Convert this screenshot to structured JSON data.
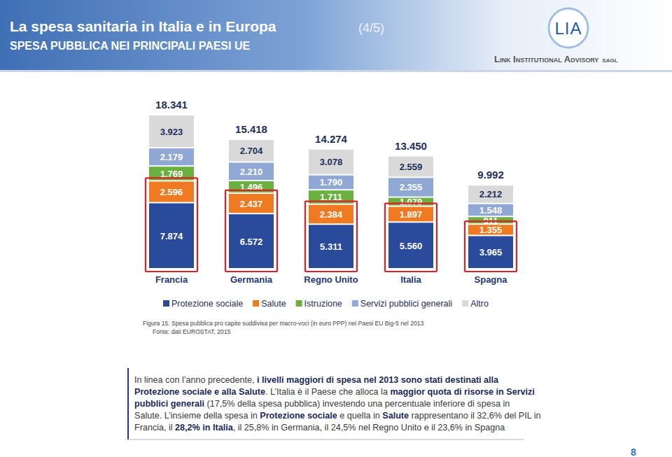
{
  "header": {
    "title": "La spesa sanitaria in Italia e in Europa",
    "page_of": "(4/5)",
    "subtitle": "SPESA PUBBLICA NEI PRINCIPALI PAESI UE"
  },
  "logo": {
    "mark": "LIA",
    "name": "Link Institutional Advisory",
    "suffix": "sagl"
  },
  "chart_data": {
    "type": "bar",
    "stacked": true,
    "data_labels": true,
    "tick_labels": "x",
    "legend": "bottom",
    "categories": [
      "Francia",
      "Germania",
      "Regno Unito",
      "Italia",
      "Spagna"
    ],
    "series": [
      {
        "name": "Protezione sociale",
        "color": "#2a4a9b",
        "values": [
          7874,
          6572,
          5311,
          5560,
          3965
        ],
        "value_labels": [
          "7.874",
          "6.572",
          "5.311",
          "5.560",
          "3.965"
        ]
      },
      {
        "name": "Salute",
        "color": "#f07a21",
        "values": [
          2596,
          2437,
          2384,
          1897,
          1355
        ],
        "value_labels": [
          "2.596",
          "2.437",
          "2.384",
          "1.897",
          "1.355"
        ]
      },
      {
        "name": "Istruzione",
        "color": "#6ab03f",
        "values": [
          1769,
          1496,
          1711,
          1079,
          911
        ],
        "value_labels": [
          "1.769",
          "1.496",
          "1.711",
          "1.079",
          "911"
        ]
      },
      {
        "name": "Servizi pubblici generali",
        "color": "#8fa8d4",
        "values": [
          2179,
          2210,
          1790,
          2355,
          1548
        ],
        "value_labels": [
          "2.179",
          "2.210",
          "1.790",
          "2.355",
          "1.548"
        ]
      },
      {
        "name": "Altro",
        "color": "#d9d9d9",
        "values": [
          3923,
          2704,
          3078,
          2559,
          2212
        ],
        "value_labels": [
          "3.923",
          "2.704",
          "3.078",
          "2.559",
          "2.212"
        ]
      }
    ],
    "totals": [
      18341,
      15418,
      14274,
      13450,
      9992
    ],
    "total_labels": [
      "18.341",
      "15.418",
      "14.274",
      "13.450",
      "9.992"
    ]
  },
  "figure": {
    "caption": "Figura 15. Spesa pubblica pro capite suddivisa per macro-voci (in euro PPP) nei Paesi EU Big-5 nel 2013",
    "source": "Fonte: dati EUROSTAT, 2015"
  },
  "body": {
    "lines": [
      [
        {
          "text": "In linea con l’anno precedente, ",
          "bold": false
        },
        {
          "text": "i livelli maggiori di spesa nel 2013 sono stati destinati alla",
          "bold": true
        }
      ],
      [
        {
          "text": "Protezione sociale e alla Salute",
          "bold": true
        },
        {
          "text": ". L’Italia è il Paese che alloca la ",
          "bold": false
        },
        {
          "text": "maggior quota di risorse in Servizi",
          "bold": true
        }
      ],
      [
        {
          "text": "pubblici generali",
          "bold": true
        },
        {
          "text": " (17,5% della spesa pubblica) investendo una percentuale inferiore di spesa in",
          "bold": false
        }
      ],
      [
        {
          "text": "Salute. L’insieme della spesa in ",
          "bold": false
        },
        {
          "text": "Protezione sociale",
          "bold": true
        },
        {
          "text": " e quella in ",
          "bold": false
        },
        {
          "text": "Salute",
          "bold": true
        },
        {
          "text": " rappresentano il 32,6% del PIL in",
          "bold": false
        }
      ],
      [
        {
          "text": "Francia, il ",
          "bold": false
        },
        {
          "text": "28,2% in Italia",
          "bold": true
        },
        {
          "text": ", il 25,8% in Germania, il 24,5% nel Regno Unito e il 23,6% in Spagna",
          "bold": false
        }
      ]
    ]
  },
  "footer": {
    "page": "8"
  }
}
